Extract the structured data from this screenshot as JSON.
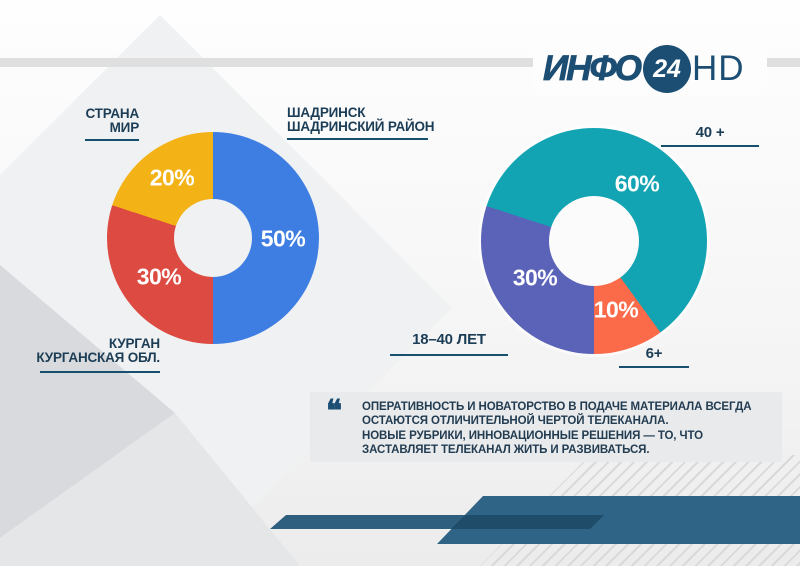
{
  "theme": {
    "navy": "#1C4E74",
    "navy_text": "#1C3D56",
    "underline": "#17506F",
    "ribbon_main": "#2F6486",
    "ribbon_stripe": "#2E5F7E",
    "ribbon_dark": "#1E4C69",
    "quote_bg": "#E9EAEB",
    "quote_text": "#223C52"
  },
  "logo": {
    "name": "ИНФО",
    "number": "24",
    "suffix": "HD"
  },
  "chart_data": [
    {
      "type": "pie",
      "variant": "donut",
      "title": "",
      "start_deg": 0,
      "legend_position": "callouts",
      "segments": [
        {
          "label": "ШАДРИНСК ШАДРИНСКИЙ РАЙОН",
          "value": 50,
          "label_text": "50%",
          "color": "#3E7EE3"
        },
        {
          "label": "КУРГАН КУРГАНСКАЯ ОБЛ.",
          "value": 30,
          "label_text": "30%",
          "color": "#DC4A41"
        },
        {
          "label": "СТРАНА МИР",
          "value": 20,
          "label_text": "20%",
          "color": "#F3B216"
        }
      ],
      "callouts": {
        "strana_mir": {
          "lines": [
            "СТРАНА",
            "МИР"
          ]
        },
        "shadrinsk": {
          "lines": [
            "ШАДРИНСК",
            "ШАДРИНСКИЙ РАЙОН"
          ]
        },
        "kurgan": {
          "lines": [
            "КУРГАН",
            "КУРГАНСКАЯ ОБЛ."
          ]
        }
      }
    },
    {
      "type": "pie",
      "variant": "donut",
      "title": "",
      "start_deg": 288,
      "legend_position": "callouts",
      "segments": [
        {
          "label": "40 +",
          "value": 60,
          "label_text": "60%",
          "color": "#12A4B2"
        },
        {
          "label": "6+",
          "value": 10,
          "label_text": "10%",
          "color": "#FB6A49"
        },
        {
          "label": "18–40 ЛЕТ",
          "value": 30,
          "label_text": "30%",
          "color": "#5B63B8"
        }
      ],
      "callouts": {
        "age40": {
          "lines": [
            "40 +"
          ]
        },
        "age1840": {
          "lines": [
            "18–40 ЛЕТ"
          ]
        },
        "age6": {
          "lines": [
            "6+"
          ]
        }
      }
    }
  ],
  "quote": {
    "mark": "❝",
    "lines": [
      "ОПЕРАТИВНОСТЬ И НОВАТОРСТВО В ПОДАЧЕ МАТЕРИАЛА ВСЕГДА",
      "ОСТАЮТСЯ ОТЛИЧИТЕЛЬНОЙ ЧЕРТОЙ ТЕЛЕКАНАЛА.",
      "НОВЫЕ РУБРИКИ, ИННОВАЦИОННЫЕ РЕШЕНИЯ — ТО, ЧТО",
      "ЗАСТАВЛЯЕТ ТЕЛЕКАНАЛ ЖИТЬ И РАЗВИВАТЬСЯ."
    ]
  }
}
